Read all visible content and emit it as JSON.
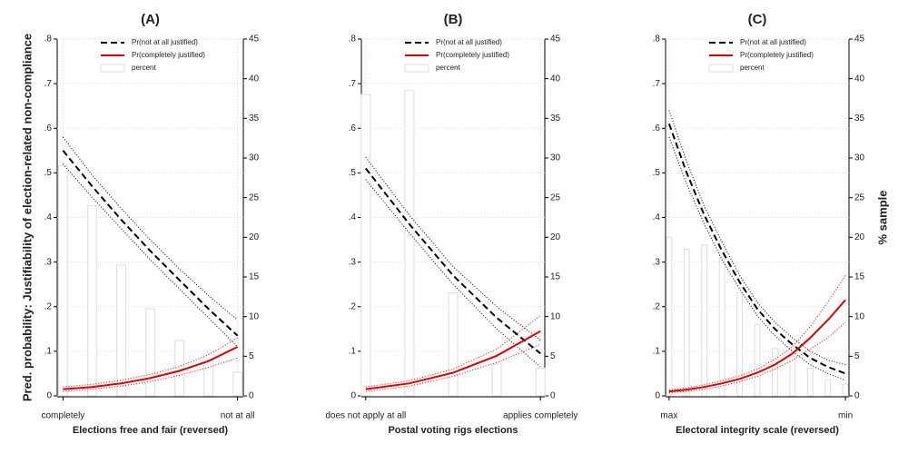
{
  "chart_data": [
    {
      "type": "line",
      "title": "(A)",
      "xlabel": "Elections free and fair (reversed)",
      "ylabel": "Pred. probability: Justifiability of election-related non-compliance",
      "x": [
        0,
        1,
        2,
        3,
        4,
        5,
        6
      ],
      "xlim": [
        -0.2,
        6.2
      ],
      "xticks": [
        {
          "value": 0,
          "label": "completely"
        },
        {
          "value": 6,
          "label": "not at all"
        }
      ],
      "ylim": [
        0,
        0.8
      ],
      "yticks": [
        0,
        {
          "value": 0.1,
          "label": ".1"
        },
        {
          "value": 0.2,
          "label": ".2"
        },
        {
          "value": 0.3,
          "label": ".3"
        },
        {
          "value": 0.4,
          "label": ".4"
        },
        {
          "value": 0.5,
          "label": ".5"
        },
        {
          "value": 0.6,
          "label": ".6"
        },
        {
          "value": 0.7,
          "label": ".7"
        },
        {
          "value": 0.8,
          "label": ".8"
        }
      ],
      "y2lim": [
        0,
        45
      ],
      "y2ticks": [
        0,
        5,
        10,
        15,
        20,
        25,
        30,
        35,
        40,
        45
      ],
      "grid": true,
      "series": [
        {
          "name": "Pr(not at all justified)",
          "color": "#000000",
          "dash": true,
          "values": [
            0.55,
            0.47,
            0.395,
            0.325,
            0.26,
            0.195,
            0.135
          ],
          "lower": [
            0.52,
            0.445,
            0.375,
            0.305,
            0.24,
            0.175,
            0.11
          ],
          "upper": [
            0.58,
            0.495,
            0.42,
            0.35,
            0.285,
            0.225,
            0.17
          ]
        },
        {
          "name": "Pr(completely justified)",
          "color": "#e00000",
          "values": [
            0.015,
            0.02,
            0.028,
            0.04,
            0.056,
            0.078,
            0.11
          ],
          "lower": [
            0.01,
            0.015,
            0.022,
            0.032,
            0.046,
            0.064,
            0.085
          ],
          "upper": [
            0.02,
            0.026,
            0.035,
            0.048,
            0.066,
            0.092,
            0.13
          ]
        },
        {
          "name": "percent",
          "color": "#dddddd",
          "axis": "y2",
          "values": [
            29,
            24,
            16.5,
            11,
            7,
            4.5,
            3
          ]
        }
      ]
    },
    {
      "type": "line",
      "title": "(B)",
      "xlabel": "Postal voting rigs elections",
      "x": [
        0,
        1,
        2,
        3,
        4
      ],
      "xlim": [
        -0.1,
        4.1
      ],
      "xticks": [
        {
          "value": 0,
          "label": "does not apply at all"
        },
        {
          "value": 4,
          "label": "applies completely"
        }
      ],
      "ylim": [
        0,
        0.8
      ],
      "yticks": [
        0,
        {
          "value": 0.1,
          "label": ".1"
        },
        {
          "value": 0.2,
          "label": ".2"
        },
        {
          "value": 0.3,
          "label": ".3"
        },
        {
          "value": 0.4,
          "label": ".4"
        },
        {
          "value": 0.5,
          "label": ".5"
        },
        {
          "value": 0.6,
          "label": ".6"
        },
        {
          "value": 0.7,
          "label": ".7"
        },
        {
          "value": 0.8,
          "label": ".8"
        }
      ],
      "y2lim": [
        0,
        45
      ],
      "y2ticks": [
        0,
        5,
        10,
        15,
        20,
        25,
        30,
        35,
        40,
        45
      ],
      "grid": true,
      "series": [
        {
          "name": "Pr(not at all justified)",
          "color": "#000000",
          "dash": true,
          "values": [
            0.51,
            0.385,
            0.27,
            0.175,
            0.095
          ],
          "lower": [
            0.485,
            0.365,
            0.25,
            0.15,
            0.065
          ],
          "upper": [
            0.535,
            0.405,
            0.29,
            0.2,
            0.125
          ]
        },
        {
          "name": "Pr(completely justified)",
          "color": "#e00000",
          "values": [
            0.015,
            0.028,
            0.052,
            0.09,
            0.145
          ],
          "lower": [
            0.01,
            0.022,
            0.044,
            0.075,
            0.115
          ],
          "upper": [
            0.02,
            0.034,
            0.06,
            0.105,
            0.18
          ]
        },
        {
          "name": "percent",
          "color": "#dddddd",
          "axis": "y2",
          "values": [
            38,
            38.5,
            13,
            4,
            3.5
          ]
        }
      ]
    },
    {
      "type": "line",
      "title": "(C)",
      "xlabel": "Electoral integrity scale (reversed)",
      "y2label": "% sample",
      "x": [
        0,
        1,
        2,
        3,
        4,
        5,
        6,
        7,
        8,
        9,
        10
      ],
      "xlim": [
        -0.2,
        10.2
      ],
      "xticks": [
        {
          "value": 0,
          "label": "max"
        },
        {
          "value": 10,
          "label": "min"
        }
      ],
      "ylim": [
        0,
        0.8
      ],
      "yticks": [
        0,
        {
          "value": 0.1,
          "label": ".1"
        },
        {
          "value": 0.2,
          "label": ".2"
        },
        {
          "value": 0.3,
          "label": ".3"
        },
        {
          "value": 0.4,
          "label": ".4"
        },
        {
          "value": 0.5,
          "label": ".5"
        },
        {
          "value": 0.6,
          "label": ".6"
        },
        {
          "value": 0.7,
          "label": ".7"
        },
        {
          "value": 0.8,
          "label": ".8"
        }
      ],
      "y2lim": [
        0,
        45
      ],
      "y2ticks": [
        0,
        5,
        10,
        15,
        20,
        25,
        30,
        35,
        40,
        45
      ],
      "grid": true,
      "series": [
        {
          "name": "Pr(not at all justified)",
          "color": "#000000",
          "dash": true,
          "values": [
            0.61,
            0.5,
            0.405,
            0.325,
            0.255,
            0.195,
            0.15,
            0.115,
            0.085,
            0.065,
            0.05
          ],
          "lower": [
            0.58,
            0.475,
            0.385,
            0.305,
            0.24,
            0.18,
            0.135,
            0.1,
            0.07,
            0.05,
            0.035
          ],
          "upper": [
            0.64,
            0.525,
            0.425,
            0.345,
            0.27,
            0.21,
            0.165,
            0.13,
            0.1,
            0.08,
            0.07
          ]
        },
        {
          "name": "Pr(completely justified)",
          "color": "#e00000",
          "values": [
            0.01,
            0.014,
            0.02,
            0.028,
            0.038,
            0.052,
            0.07,
            0.095,
            0.13,
            0.17,
            0.215
          ],
          "lower": [
            0.007,
            0.01,
            0.015,
            0.022,
            0.032,
            0.044,
            0.06,
            0.08,
            0.105,
            0.13,
            0.165
          ],
          "upper": [
            0.013,
            0.018,
            0.025,
            0.034,
            0.045,
            0.06,
            0.082,
            0.11,
            0.155,
            0.21,
            0.27
          ]
        },
        {
          "name": "percent",
          "color": "#dddddd",
          "axis": "y2",
          "values": [
            20,
            18.5,
            19,
            19.5,
            13,
            9,
            6,
            5,
            3.5,
            2,
            1.5
          ]
        }
      ]
    }
  ]
}
